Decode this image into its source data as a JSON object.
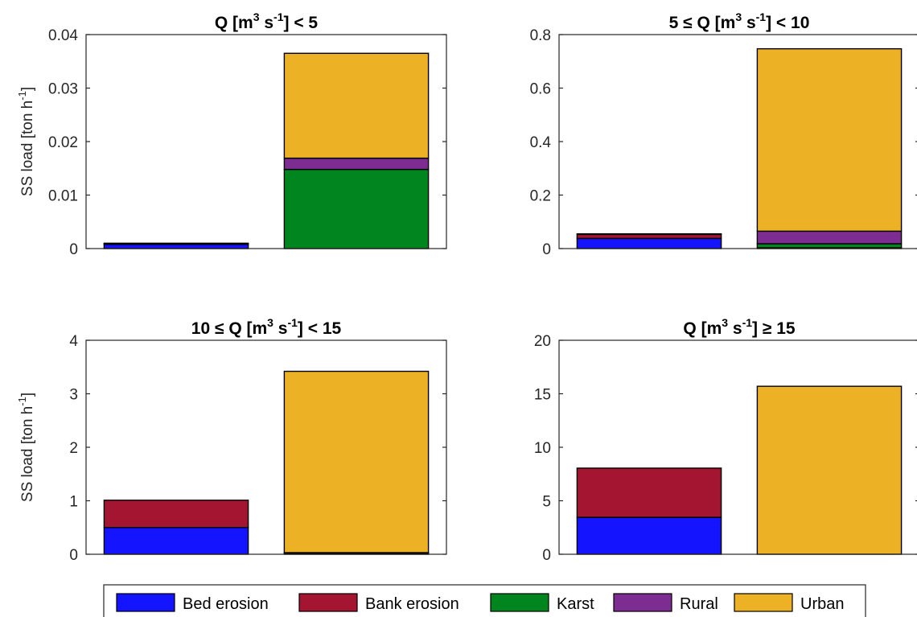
{
  "colors": {
    "bed-erosion": "#1414ff",
    "bank-erosion": "#a31530",
    "karst": "#00851f",
    "rural": "#7d2d91",
    "urban": "#ecb125"
  },
  "legend": [
    {
      "key": "bed-erosion",
      "label": "Bed erosion"
    },
    {
      "key": "bank-erosion",
      "label": "Bank erosion"
    },
    {
      "key": "karst",
      "label": "Karst"
    },
    {
      "key": "rural",
      "label": "Rural"
    },
    {
      "key": "urban",
      "label": "Urban"
    }
  ],
  "chart_data": [
    {
      "type": "bar",
      "stacked": true,
      "title": {
        "pre": "Q [m",
        "sup1": "3",
        "mid": " s",
        "sup2": "-1",
        "post": "] <  5"
      },
      "ylabel": {
        "pre": "SS load [ton h",
        "sup": "-1",
        "post": "]"
      },
      "ylim": [
        0,
        0.04
      ],
      "yticks": [
        "0",
        "0.01",
        "0.02",
        "0.03",
        "0.04"
      ],
      "categories": [
        "",
        ""
      ],
      "series": [
        {
          "name": "Bed erosion",
          "key": "bed-erosion",
          "values": [
            0.0008,
            0
          ]
        },
        {
          "name": "Bank erosion",
          "key": "bank-erosion",
          "values": [
            0.0001,
            0
          ]
        },
        {
          "name": "Karst",
          "key": "karst",
          "values": [
            0,
            0.0148
          ]
        },
        {
          "name": "Rural",
          "key": "rural",
          "values": [
            0.0001,
            0.0021
          ]
        },
        {
          "name": "Urban",
          "key": "urban",
          "values": [
            0,
            0.0196
          ]
        }
      ]
    },
    {
      "type": "bar",
      "stacked": true,
      "title": {
        "pre": "5 ≤ Q [m",
        "sup1": "3",
        "mid": " s",
        "sup2": "-1",
        "post": "] < 10"
      },
      "ylabel": null,
      "ylim": [
        0,
        0.8
      ],
      "yticks": [
        "0",
        "0.2",
        "0.4",
        "0.6",
        "0.8"
      ],
      "categories": [
        "",
        ""
      ],
      "series": [
        {
          "name": "Bed erosion",
          "key": "bed-erosion",
          "values": [
            0.038,
            0.003
          ]
        },
        {
          "name": "Bank erosion",
          "key": "bank-erosion",
          "values": [
            0.015,
            0
          ]
        },
        {
          "name": "Karst",
          "key": "karst",
          "values": [
            0,
            0.015
          ]
        },
        {
          "name": "Rural",
          "key": "rural",
          "values": [
            0.002,
            0.047
          ]
        },
        {
          "name": "Urban",
          "key": "urban",
          "values": [
            0,
            0.682
          ]
        }
      ]
    },
    {
      "type": "bar",
      "stacked": true,
      "title": {
        "pre": "10 ≤ Q [m",
        "sup1": "3",
        "mid": " s",
        "sup2": "-1",
        "post": "] < 15"
      },
      "ylabel": {
        "pre": "SS load [ton h",
        "sup": "-1",
        "post": "]"
      },
      "ylim": [
        0,
        4
      ],
      "yticks": [
        "0",
        "1",
        "2",
        "3",
        "4"
      ],
      "categories": [
        "",
        ""
      ],
      "series": [
        {
          "name": "Bed erosion",
          "key": "bed-erosion",
          "values": [
            0.5,
            0
          ]
        },
        {
          "name": "Bank erosion",
          "key": "bank-erosion",
          "values": [
            0.51,
            0
          ]
        },
        {
          "name": "Karst",
          "key": "karst",
          "values": [
            0,
            0.02
          ]
        },
        {
          "name": "Rural",
          "key": "rural",
          "values": [
            0,
            0.01
          ]
        },
        {
          "name": "Urban",
          "key": "urban",
          "values": [
            0,
            3.39
          ]
        }
      ]
    },
    {
      "type": "bar",
      "stacked": true,
      "title": {
        "pre": "Q [m",
        "sup1": "3",
        "mid": " s",
        "sup2": "-1",
        "post": "] ≥ 15"
      },
      "ylabel": null,
      "ylim": [
        0,
        20
      ],
      "yticks": [
        "0",
        "5",
        "10",
        "15",
        "20"
      ],
      "categories": [
        "",
        ""
      ],
      "series": [
        {
          "name": "Bed erosion",
          "key": "bed-erosion",
          "values": [
            3.45,
            0
          ]
        },
        {
          "name": "Bank erosion",
          "key": "bank-erosion",
          "values": [
            4.6,
            0
          ]
        },
        {
          "name": "Karst",
          "key": "karst",
          "values": [
            0,
            0
          ]
        },
        {
          "name": "Rural",
          "key": "rural",
          "values": [
            0,
            0
          ]
        },
        {
          "name": "Urban",
          "key": "urban",
          "values": [
            0,
            15.7
          ]
        }
      ]
    }
  ]
}
